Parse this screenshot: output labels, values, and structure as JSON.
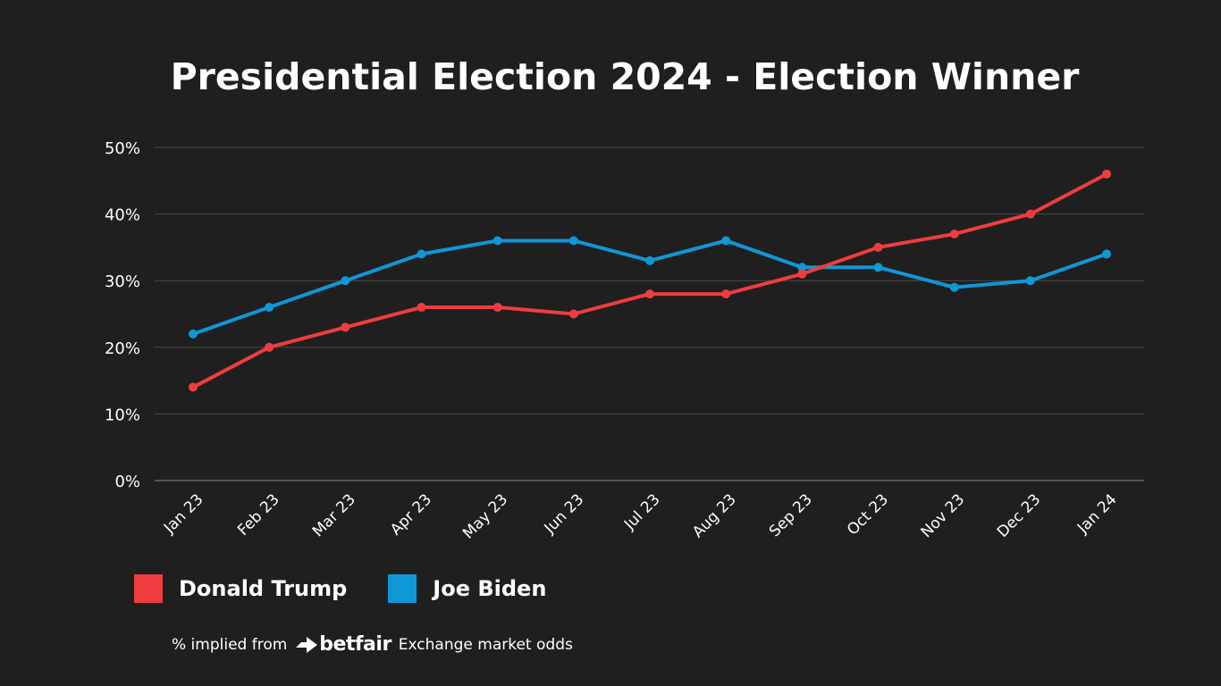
{
  "title": "Presidential Election 2024 - Election Winner",
  "chart_data": {
    "type": "line",
    "title": "Presidential Election 2024 - Election Winner",
    "categories": [
      "Jan 23",
      "Feb 23",
      "Mar 23",
      "Apr 23",
      "May 23",
      "Jun 23",
      "Jul 23",
      "Aug 23",
      "Sep 23",
      "Oct 23",
      "Nov 23",
      "Dec 23",
      "Jan 24"
    ],
    "y_ticks": [
      "0%",
      "10%",
      "20%",
      "30%",
      "40%",
      "50%"
    ],
    "ylim": [
      0,
      50
    ],
    "grid": true,
    "legend_position": "bottom-left",
    "series": [
      {
        "name": "Donald Trump",
        "color": "#ef3d3f",
        "values": [
          14,
          20,
          23,
          26,
          26,
          25,
          28,
          28,
          31,
          35,
          37,
          40,
          46
        ]
      },
      {
        "name": "Joe Biden",
        "color": "#0f97d8",
        "values": [
          22,
          26,
          30,
          34,
          36,
          36,
          33,
          36,
          32,
          32,
          29,
          30,
          34
        ]
      }
    ]
  },
  "footnote": {
    "prefix": "% implied from",
    "brand": "betfair",
    "suffix": "Exchange market odds"
  },
  "colors": {
    "background": "#1f1f1f",
    "grid": "#4a4a4a",
    "text": "#ffffff"
  }
}
